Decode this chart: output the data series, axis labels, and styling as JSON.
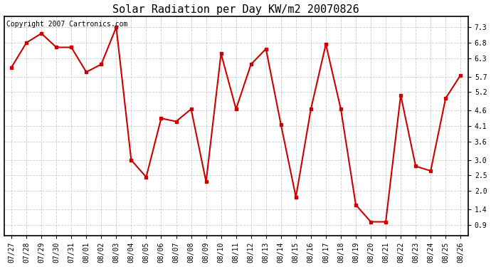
{
  "title": "Solar Radiation per Day KW/m2 20070826",
  "copyright_text": "Copyright 2007 Cartronics.com",
  "dates": [
    "07/27",
    "07/28",
    "07/29",
    "07/30",
    "07/31",
    "08/01",
    "08/02",
    "08/03",
    "08/04",
    "08/05",
    "08/06",
    "08/07",
    "08/08",
    "08/09",
    "08/10",
    "08/11",
    "08/12",
    "08/13",
    "08/14",
    "08/15",
    "08/16",
    "08/17",
    "08/18",
    "08/19",
    "08/20",
    "08/21",
    "08/22",
    "08/23",
    "08/24",
    "08/25",
    "08/26"
  ],
  "values": [
    6.0,
    6.8,
    7.1,
    6.65,
    6.65,
    5.85,
    6.1,
    7.3,
    3.0,
    2.45,
    4.35,
    4.25,
    4.65,
    2.3,
    6.45,
    4.65,
    6.1,
    6.6,
    4.15,
    1.8,
    4.65,
    6.75,
    4.65,
    1.55,
    1.0,
    1.0,
    5.1,
    2.8,
    2.65,
    5.0,
    5.75
  ],
  "line_color": "#cc0000",
  "marker": "s",
  "marker_size": 3,
  "line_width": 1.5,
  "yticks": [
    0.9,
    1.4,
    2.0,
    2.5,
    3.0,
    3.6,
    4.1,
    4.6,
    5.2,
    5.7,
    6.3,
    6.8,
    7.3
  ],
  "ylim": [
    0.55,
    7.65
  ],
  "background_color": "#ffffff",
  "plot_bg_color": "#ffffff",
  "grid_color": "#cccccc",
  "title_fontsize": 11,
  "tick_fontsize": 7,
  "copyright_fontsize": 7
}
